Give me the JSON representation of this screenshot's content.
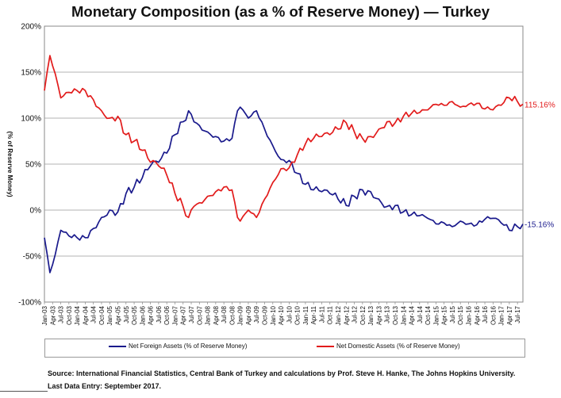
{
  "chart_data": {
    "type": "line",
    "title": "Monetary Composition (as a % of Reserve Money) — Turkey",
    "ylabel": "(% of Reserve Money)",
    "ylim": [
      -100,
      200
    ],
    "yticks": [
      -100,
      -50,
      0,
      50,
      100,
      150,
      200
    ],
    "ytick_labels": [
      "-100%",
      "-50%",
      "0%",
      "50%",
      "100%",
      "150%",
      "200%"
    ],
    "x_tick_labels": [
      "Jan-03",
      "Apr-03",
      "Jul-03",
      "Oct-03",
      "Jan-04",
      "Apr-04",
      "Jul-04",
      "Oct-04",
      "Jan-05",
      "Apr-05",
      "Jul-05",
      "Oct-05",
      "Jan-06",
      "Apr-06",
      "Jul-06",
      "Oct-06",
      "Jan-07",
      "Apr-07",
      "Jul-07",
      "Oct-07",
      "Jan-08",
      "Apr-08",
      "Jul-08",
      "Oct-08",
      "Jan-09",
      "Apr-09",
      "Jul-09",
      "Oct-09",
      "Jan-10",
      "Apr-10",
      "Jul-10",
      "Oct-10",
      "Jan-11",
      "Apr-11",
      "Jul-11",
      "Oct-11",
      "Jan-12",
      "Apr-12",
      "Jul-12",
      "Oct-12",
      "Jan-13",
      "Apr-13",
      "Jul-13",
      "Oct-13",
      "Jan-14",
      "Apr-14",
      "Jul-14",
      "Oct-14",
      "Jan-15",
      "Apr-15",
      "Jul-15",
      "Oct-15",
      "Jan-16",
      "Apr-16",
      "Jul-16",
      "Oct-16",
      "Jan-17",
      "Apr-17",
      "Jul-17"
    ],
    "grid": "horizontal",
    "legend_position": "bottom",
    "series": [
      {
        "name": "Net Foreign Assets (% of Reserve Money)",
        "color": "#1a1a8c",
        "end_label": "-15.16%",
        "anchors": [
          [
            "Jan-03",
            -30
          ],
          [
            "Mar-03",
            -68
          ],
          [
            "May-03",
            -48
          ],
          [
            "Jul-03",
            -22
          ],
          [
            "Oct-03",
            -28
          ],
          [
            "Jan-04",
            -30
          ],
          [
            "Apr-04",
            -30
          ],
          [
            "Jul-04",
            -20
          ],
          [
            "Oct-04",
            -8
          ],
          [
            "Jan-05",
            0
          ],
          [
            "Apr-05",
            -2
          ],
          [
            "Jul-05",
            18
          ],
          [
            "Oct-05",
            25
          ],
          [
            "Jan-06",
            35
          ],
          [
            "Apr-06",
            48
          ],
          [
            "Jul-06",
            52
          ],
          [
            "Oct-06",
            62
          ],
          [
            "Jan-07",
            82
          ],
          [
            "Apr-07",
            96
          ],
          [
            "Jun-07",
            108
          ],
          [
            "Aug-07",
            96
          ],
          [
            "Oct-07",
            92
          ],
          [
            "Jan-08",
            85
          ],
          [
            "Apr-08",
            80
          ],
          [
            "Jul-08",
            75
          ],
          [
            "Oct-08",
            78
          ],
          [
            "Dec-08",
            108
          ],
          [
            "Jan-09",
            112
          ],
          [
            "Apr-09",
            100
          ],
          [
            "Jul-09",
            108
          ],
          [
            "Oct-09",
            88
          ],
          [
            "Jan-10",
            70
          ],
          [
            "Apr-10",
            55
          ],
          [
            "Jul-10",
            54
          ],
          [
            "Oct-10",
            40
          ],
          [
            "Jan-11",
            28
          ],
          [
            "Apr-11",
            22
          ],
          [
            "Jul-11",
            20
          ],
          [
            "Oct-11",
            18
          ],
          [
            "Jan-12",
            12
          ],
          [
            "Apr-12",
            5
          ],
          [
            "Jul-12",
            15
          ],
          [
            "Oct-12",
            22
          ],
          [
            "Jan-13",
            20
          ],
          [
            "Apr-13",
            12
          ],
          [
            "Jul-13",
            4
          ],
          [
            "Oct-13",
            5
          ],
          [
            "Jan-14",
            -2
          ],
          [
            "Apr-14",
            -5
          ],
          [
            "Jul-14",
            -6
          ],
          [
            "Oct-14",
            -9
          ],
          [
            "Jan-15",
            -15
          ],
          [
            "Apr-15",
            -14
          ],
          [
            "Jul-15",
            -18
          ],
          [
            "Oct-15",
            -12
          ],
          [
            "Jan-16",
            -15
          ],
          [
            "Apr-16",
            -16
          ],
          [
            "Jul-16",
            -10
          ],
          [
            "Oct-16",
            -9
          ],
          [
            "Jan-17",
            -14
          ],
          [
            "Apr-17",
            -22
          ],
          [
            "Jul-17",
            -18
          ],
          [
            "Sep-17",
            -15.16
          ]
        ]
      },
      {
        "name": "Net Domestic Assets (% of Reserve Money)",
        "color": "#e21b1b",
        "end_label": "115.16%",
        "anchors": [
          [
            "Jan-03",
            130
          ],
          [
            "Mar-03",
            168
          ],
          [
            "May-03",
            148
          ],
          [
            "Jul-03",
            122
          ],
          [
            "Oct-03",
            128
          ],
          [
            "Jan-04",
            130
          ],
          [
            "Apr-04",
            130
          ],
          [
            "Jul-04",
            120
          ],
          [
            "Oct-04",
            108
          ],
          [
            "Jan-05",
            100
          ],
          [
            "Apr-05",
            102
          ],
          [
            "Jul-05",
            82
          ],
          [
            "Oct-05",
            75
          ],
          [
            "Jan-06",
            65
          ],
          [
            "Apr-06",
            52
          ],
          [
            "Jul-06",
            48
          ],
          [
            "Oct-06",
            38
          ],
          [
            "Jan-07",
            18
          ],
          [
            "Apr-07",
            4
          ],
          [
            "Jun-07",
            -8
          ],
          [
            "Aug-07",
            4
          ],
          [
            "Oct-07",
            8
          ],
          [
            "Jan-08",
            15
          ],
          [
            "Apr-08",
            20
          ],
          [
            "Jul-08",
            25
          ],
          [
            "Oct-08",
            22
          ],
          [
            "Dec-08",
            -8
          ],
          [
            "Jan-09",
            -12
          ],
          [
            "Apr-09",
            0
          ],
          [
            "Jul-09",
            -8
          ],
          [
            "Oct-09",
            12
          ],
          [
            "Jan-10",
            30
          ],
          [
            "Apr-10",
            45
          ],
          [
            "Jul-10",
            46
          ],
          [
            "Oct-10",
            60
          ],
          [
            "Jan-11",
            72
          ],
          [
            "Apr-11",
            78
          ],
          [
            "Jul-11",
            80
          ],
          [
            "Oct-11",
            82
          ],
          [
            "Jan-12",
            88
          ],
          [
            "Apr-12",
            95
          ],
          [
            "Jul-12",
            85
          ],
          [
            "Oct-12",
            78
          ],
          [
            "Jan-13",
            80
          ],
          [
            "Apr-13",
            88
          ],
          [
            "Jul-13",
            96
          ],
          [
            "Oct-13",
            95
          ],
          [
            "Jan-14",
            102
          ],
          [
            "Apr-14",
            105
          ],
          [
            "Jul-14",
            106
          ],
          [
            "Oct-14",
            109
          ],
          [
            "Jan-15",
            115
          ],
          [
            "Apr-15",
            114
          ],
          [
            "Jul-15",
            118
          ],
          [
            "Oct-15",
            112
          ],
          [
            "Jan-16",
            115
          ],
          [
            "Apr-16",
            116
          ],
          [
            "Jul-16",
            110
          ],
          [
            "Oct-16",
            109
          ],
          [
            "Jan-17",
            114
          ],
          [
            "Apr-17",
            122
          ],
          [
            "Jul-17",
            118
          ],
          [
            "Sep-17",
            115.16
          ]
        ]
      }
    ]
  },
  "source": "Source: International Financial Statistics, Central Bank of Turkey and calculations by Prof. Steve H. Hanke, The Johns Hopkins University.",
  "last_data_entry": "Last Data Entry: September 2017."
}
